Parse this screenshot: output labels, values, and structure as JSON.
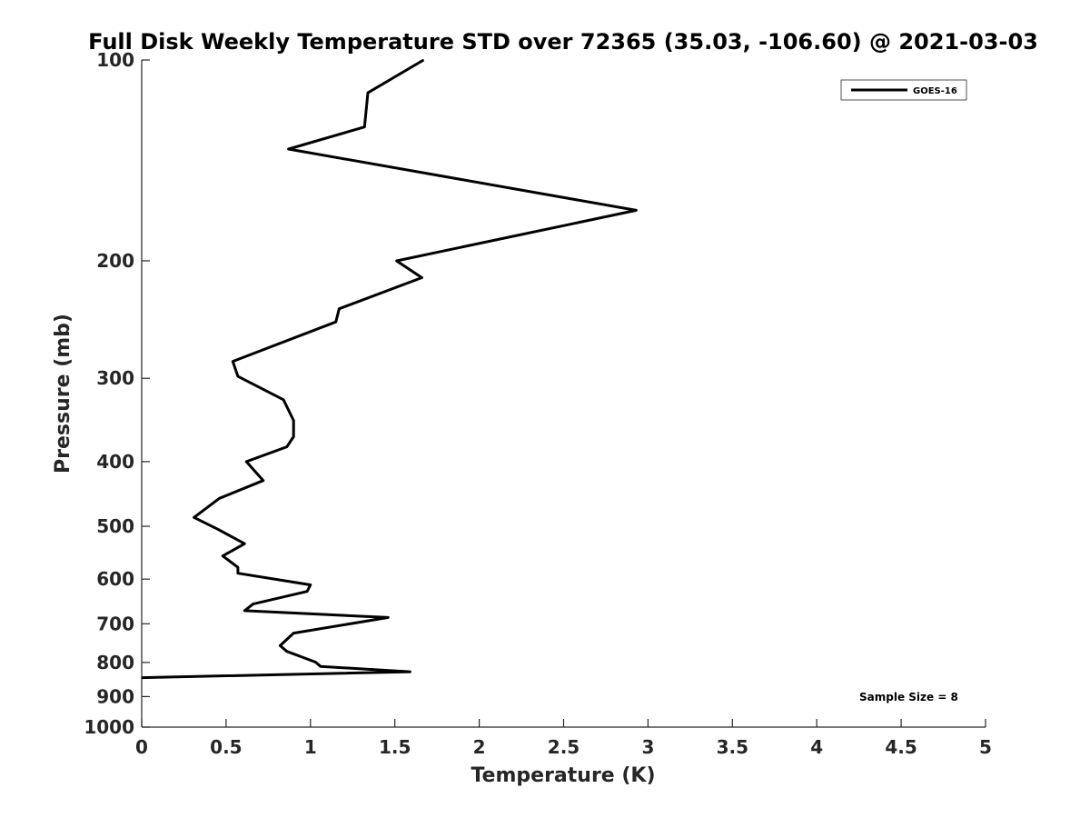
{
  "chart_data": {
    "type": "line",
    "title": "Full Disk Weekly Temperature STD over 72365 (35.03, -106.60) @ 2021-03-03",
    "xlabel": "Temperature (K)",
    "ylabel": "Pressure (mb)",
    "xlim": [
      0,
      5
    ],
    "ylim": [
      1000,
      100
    ],
    "yscale": "log",
    "y_reversed": true,
    "xticks": [
      "0",
      "0.5",
      "1",
      "1.5",
      "2",
      "2.5",
      "3",
      "3.5",
      "4",
      "4.5",
      "5"
    ],
    "yticks": [
      "100",
      "200",
      "300",
      "400",
      "500",
      "600",
      "700",
      "800",
      "900",
      "1000"
    ],
    "grid": false,
    "legend_position": "top-right",
    "annotation": "Sample Size = 8",
    "series": [
      {
        "name": "GOES-16",
        "color": "#000000",
        "x": [
          1.67,
          1.34,
          1.32,
          0.87,
          2.93,
          1.51,
          1.66,
          1.17,
          1.15,
          0.54,
          0.57,
          0.84,
          0.9,
          0.9,
          0.86,
          0.62,
          0.72,
          0.46,
          0.31,
          0.45,
          0.61,
          0.48,
          0.57,
          0.57,
          1.0,
          0.98,
          0.66,
          0.61,
          1.46,
          0.9,
          0.82,
          0.86,
          1.03,
          1.06,
          1.59,
          0.0
        ],
        "y": [
          100,
          112,
          126,
          136,
          168,
          200,
          212,
          236,
          247,
          283,
          298,
          323,
          347,
          367,
          380,
          400,
          427,
          454,
          485,
          505,
          531,
          554,
          576,
          588,
          612,
          626,
          654,
          669,
          685,
          723,
          755,
          770,
          799,
          811,
          826,
          843
        ]
      }
    ]
  }
}
